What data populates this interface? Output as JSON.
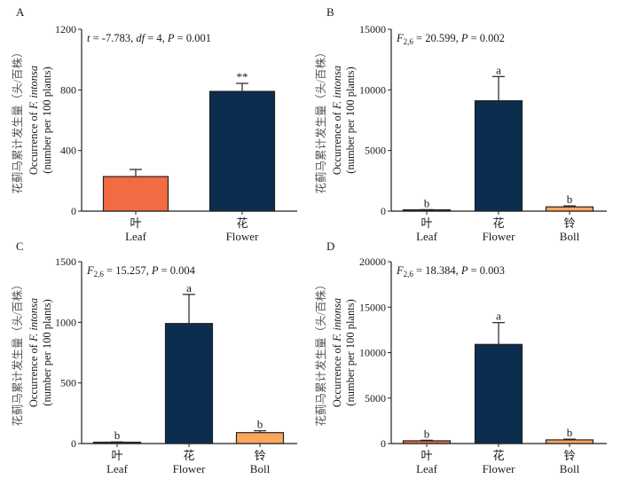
{
  "chart_data": [
    {
      "type": "bar",
      "panel": "A",
      "title": "",
      "annotation": {
        "parts": [
          [
            "t",
            true
          ],
          [
            " = -7.783, ",
            false
          ],
          [
            "df",
            true
          ],
          [
            " = 4, ",
            false
          ],
          [
            "P",
            true
          ],
          [
            " = 0.001",
            false
          ]
        ]
      },
      "categories": [
        {
          "cn": "叶",
          "en": "Leaf"
        },
        {
          "cn": "花",
          "en": "Flower"
        }
      ],
      "values": [
        228,
        790
      ],
      "errors": [
        47,
        53
      ],
      "significance": [
        "",
        "**"
      ],
      "colors": [
        "#F26B43",
        "#0B2D4F"
      ],
      "yticks": [
        0,
        400,
        800,
        1200
      ],
      "ylim": [
        0,
        1200
      ],
      "ylabel": {
        "cn": "花蓟马累计发生量（头/百株）",
        "en_prefix": "Occurrence of ",
        "en_italic": "F. intonsa",
        "en_units": "(number per 100 plants)"
      },
      "xlabel": ""
    },
    {
      "type": "bar",
      "panel": "B",
      "annotation": {
        "parts": [
          [
            "F",
            true
          ],
          [
            "2,6",
            "sub"
          ],
          [
            " = 20.599,  ",
            false
          ],
          [
            "P",
            true
          ],
          [
            " = 0.002",
            false
          ]
        ]
      },
      "categories": [
        {
          "cn": "叶",
          "en": "Leaf"
        },
        {
          "cn": "花",
          "en": "Flower"
        },
        {
          "cn": "铃",
          "en": "Boll"
        }
      ],
      "values": [
        100,
        9100,
        350
      ],
      "errors": [
        20,
        2000,
        80
      ],
      "significance": [
        "b",
        "a",
        "b"
      ],
      "colors": [
        "#5A2A22",
        "#0B2D4F",
        "#F9A75A"
      ],
      "yticks": [
        0,
        5000,
        10000,
        15000
      ],
      "ylim": [
        0,
        15000
      ],
      "ylabel": {
        "cn": "花蓟马累计发生量（头/百株）",
        "en_prefix": "Occurrence of ",
        "en_italic": "F. intonsa",
        "en_units": "(number per 100 plants)"
      },
      "xlabel": ""
    },
    {
      "type": "bar",
      "panel": "C",
      "annotation": {
        "parts": [
          [
            "F",
            true
          ],
          [
            "2,6",
            "sub"
          ],
          [
            " = 15.257,  ",
            false
          ],
          [
            "P",
            true
          ],
          [
            " = 0.004",
            false
          ]
        ]
      },
      "categories": [
        {
          "cn": "叶",
          "en": "Leaf"
        },
        {
          "cn": "花",
          "en": "Flower"
        },
        {
          "cn": "铃",
          "en": "Boll"
        }
      ],
      "values": [
        10,
        990,
        90
      ],
      "errors": [
        3,
        240,
        15
      ],
      "significance": [
        "b",
        "a",
        "b"
      ],
      "colors": [
        "#5A2A22",
        "#0B2D4F",
        "#F9A75A"
      ],
      "yticks": [
        0,
        500,
        1000,
        1500
      ],
      "ylim": [
        0,
        1500
      ],
      "ylabel": {
        "cn": "花蓟马累计发生量（头/百株）",
        "en_prefix": "Occurrence of ",
        "en_italic": "F. intonsa",
        "en_units": "(number per 100 plants)"
      },
      "xlabel": ""
    },
    {
      "type": "bar",
      "panel": "D",
      "annotation": {
        "parts": [
          [
            "F",
            true
          ],
          [
            "2,6",
            "sub"
          ],
          [
            " = 18.384,  ",
            false
          ],
          [
            "P",
            true
          ],
          [
            " = 0.003",
            false
          ]
        ]
      },
      "categories": [
        {
          "cn": "叶",
          "en": "Leaf"
        },
        {
          "cn": "花",
          "en": "Flower"
        },
        {
          "cn": "铃",
          "en": "Boll"
        }
      ],
      "values": [
        300,
        10900,
        400
      ],
      "errors": [
        60,
        2400,
        80
      ],
      "significance": [
        "b",
        "a",
        "b"
      ],
      "colors": [
        "#F26B43",
        "#0B2D4F",
        "#F9A75A"
      ],
      "yticks": [
        0,
        5000,
        10000,
        15000,
        20000
      ],
      "ylim": [
        0,
        20000
      ],
      "ylabel": {
        "cn": "花蓟马累计发生量（头/百株）",
        "en_prefix": "Occurrence of ",
        "en_italic": "F. intonsa",
        "en_units": "(number per 100 plants)"
      },
      "xlabel": ""
    }
  ]
}
